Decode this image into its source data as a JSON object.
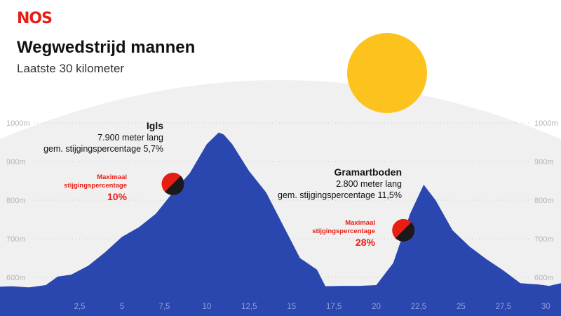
{
  "header": {
    "logo": "NOS",
    "title": "Wegwedstrijd mannen",
    "subtitle": "Laatste 30 kilometer"
  },
  "colors": {
    "profile": "#2a47b0",
    "sun": "#fcc31f",
    "sky": "#f0f0f0",
    "accent": "#e61e14",
    "marker_dark": "#1a1a1a"
  },
  "chart_data": {
    "type": "area",
    "xlabel": "",
    "ylabel": "",
    "xlim": [
      -2.2,
      30.9
    ],
    "ylim": [
      570,
      1000
    ],
    "x_ticks": [
      2.5,
      5,
      7.5,
      10,
      12.5,
      15,
      17.5,
      20,
      22.5,
      25,
      27.5,
      30
    ],
    "x_tick_labels": [
      "2,5",
      "5",
      "7,5",
      "10",
      "12,5",
      "15",
      "17,5",
      "20",
      "22,5",
      "25",
      "27,5",
      "30"
    ],
    "y_ticks": [
      600,
      700,
      800,
      900,
      1000
    ],
    "y_tick_labels": [
      "600m",
      "700m",
      "800m",
      "900m",
      "1000m"
    ],
    "grid": "dotted",
    "series": [
      {
        "x": [
          -2.2,
          -1.5,
          -0.5,
          0.5,
          1.2,
          2.0,
          3.0,
          4.0,
          5.0,
          6.0,
          7.0,
          8.0,
          9.0,
          10.0,
          10.7,
          11.0,
          11.5,
          12.5,
          13.5,
          14.5,
          15.5,
          16.5,
          17.0,
          18.0,
          19.0,
          20.0,
          21.0,
          22.0,
          22.8,
          23.5,
          24.5,
          25.5,
          26.5,
          27.5,
          28.5,
          29.5,
          30.2,
          30.9
        ],
        "y": [
          576,
          577,
          574,
          580,
          602,
          607,
          630,
          665,
          705,
          730,
          765,
          820,
          870,
          945,
          975,
          970,
          945,
          875,
          820,
          735,
          650,
          620,
          577,
          578,
          578,
          580,
          637,
          765,
          840,
          800,
          722,
          680,
          647,
          618,
          585,
          582,
          578,
          585
        ]
      }
    ],
    "climbs": [
      {
        "name": "Igls",
        "length": "7.900 meter lang",
        "gradient": "gem. stijgingspercentage 5,7%",
        "max_label": "Maximaal stijgingspercentage",
        "max_value": "10%",
        "max_x": 8.0,
        "max_y": 842
      },
      {
        "name": "Gramartboden",
        "length": "2.800 meter lang",
        "gradient": "gem. stijgingspercentage 11,5%",
        "max_label": "Maximaal stijgingspercentage",
        "max_value": "28%",
        "max_x": 21.6,
        "max_y": 722
      }
    ]
  }
}
